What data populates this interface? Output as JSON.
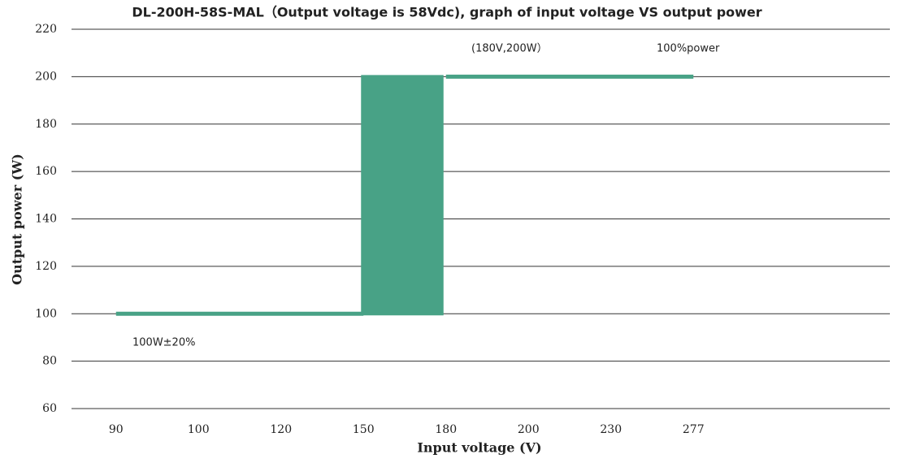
{
  "chart_data": {
    "type": "line",
    "title": "DL-200H-58S-MAL（Output voltage is 58Vdc), graph of input voltage VS output power",
    "x_label": "Input voltage (V)",
    "y_label": "Output power (W)",
    "categories": [
      "90",
      "100",
      "120",
      "150",
      "180",
      "200",
      "230",
      "277",
      null,
      null
    ],
    "series": [
      {
        "name": "Output power",
        "color": "#48a286",
        "values": [
          100,
          100,
          100,
          100,
          200,
          200,
          200,
          200,
          null,
          null
        ]
      }
    ],
    "annotations": [
      "(180V,200W）",
      "100%power",
      "100W±20%"
    ],
    "ylim": [
      60,
      220
    ],
    "yticks": [
      60,
      80,
      100,
      120,
      140,
      160,
      180,
      200,
      220
    ],
    "grid": true
  }
}
